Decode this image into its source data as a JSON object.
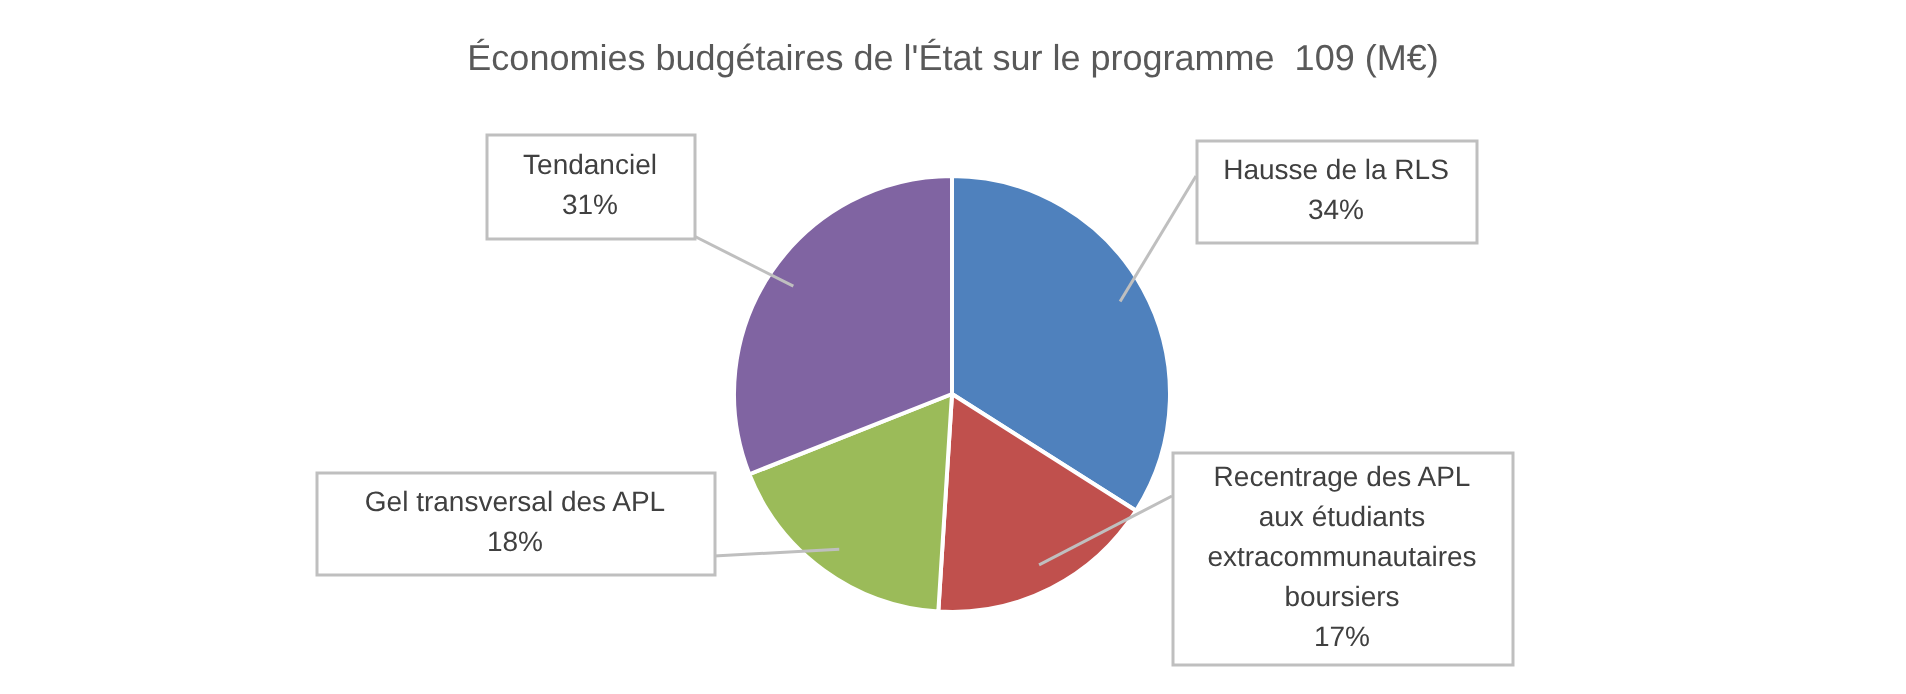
{
  "chart_data": {
    "type": "pie",
    "title": "Économies budgétaires de l'État sur le programme  109 (M€)",
    "categories": [
      "Hausse de la RLS",
      "Recentrage des APL aux étudiants extracommunautaires boursiers",
      "Gel transversal des APL",
      "Tendanciel"
    ],
    "values": [
      34,
      17,
      18,
      31
    ],
    "value_labels": [
      "34%",
      "17%",
      "18%",
      "31%"
    ],
    "colors": [
      "#4f81bd",
      "#c0504d",
      "#9bbb59",
      "#8064a2"
    ],
    "legend": false
  }
}
